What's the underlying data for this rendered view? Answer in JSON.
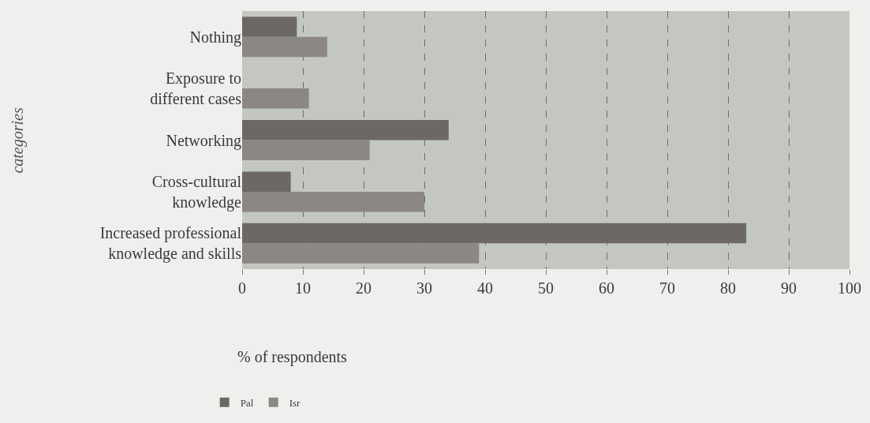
{
  "chart_data": {
    "type": "bar",
    "orientation": "horizontal",
    "xlabel": "% of respondents",
    "ylabel": "categories",
    "categories": [
      "Nothing",
      "Exposure to different cases",
      "Networking",
      "Cross-cultural knowledge",
      "Increased professional knowledge and skills"
    ],
    "series": [
      {
        "name": "Pal",
        "color": "#6b6866",
        "values": [
          9,
          0,
          34,
          8,
          83
        ]
      },
      {
        "name": "Isr",
        "color": "#8a8785",
        "values": [
          14,
          11,
          21,
          30,
          39
        ]
      }
    ],
    "xlim": [
      0,
      100
    ],
    "xticks": [
      0,
      10,
      20,
      30,
      40,
      50,
      60,
      70,
      80,
      90,
      100
    ],
    "grid": "x",
    "legend": "bottom left"
  }
}
